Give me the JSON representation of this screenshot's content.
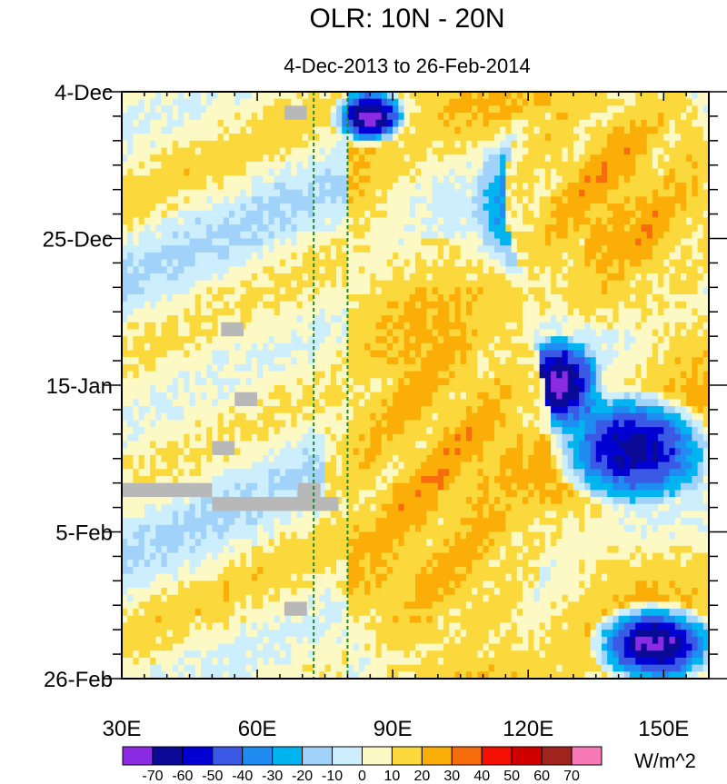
{
  "chart_data": {
    "type": "heatmap",
    "title": "OLR: 10N - 20N",
    "subtitle": "4-Dec-2013 to 26-Feb-2014",
    "x_axis": {
      "label": "",
      "range_deg": [
        30,
        160
      ],
      "ticks": [
        30,
        60,
        90,
        120,
        150
      ],
      "tick_labels": [
        "30E",
        "60E",
        "90E",
        "120E",
        "150E"
      ]
    },
    "y_axis": {
      "label": "",
      "range_days": [
        0,
        84
      ],
      "direction": "top-to-bottom",
      "ticks": [
        0,
        21,
        42,
        63,
        84
      ],
      "tick_labels": [
        "4-Dec",
        "25-Dec",
        "15-Jan",
        "5-Feb",
        "26-Feb"
      ]
    },
    "reference_lines": [
      {
        "longitude": 72.5,
        "style": "dashed",
        "color": "#1c8a2c"
      },
      {
        "longitude": 80,
        "style": "dashed",
        "color": "#1c8a2c"
      }
    ],
    "colorbar": {
      "units": "W/m^2",
      "boundaries": [
        -70,
        -60,
        -50,
        -40,
        -30,
        -20,
        -10,
        0,
        10,
        20,
        30,
        40,
        50,
        60,
        70
      ],
      "labels": [
        "-70",
        "-60",
        "-50",
        "-40",
        "-30",
        "-20",
        "-10",
        "0",
        "10",
        "20",
        "30",
        "40",
        "50",
        "60",
        "70"
      ],
      "colors": [
        "#8b2be3",
        "#0a0a96",
        "#0000d2",
        "#3a5ae6",
        "#1e8cf0",
        "#00b4f0",
        "#a0d2fa",
        "#cdeefc",
        "#fdf9c4",
        "#fbd93c",
        "#fcae08",
        "#f76c0c",
        "#f41000",
        "#d10000",
        "#a1231e",
        "#f77ab7"
      ]
    },
    "missing_color": "#b8b8b8",
    "anomaly_features": [
      {
        "lon_range": [
          78,
          92
        ],
        "day_range": [
          0,
          7
        ],
        "min_value": -70,
        "desc": "strong negative near 85E early Dec"
      },
      {
        "lon_range": [
          110,
          132
        ],
        "day_range": [
          6,
          26
        ],
        "min_value": -40
      },
      {
        "lon_range": [
          118,
          135
        ],
        "day_range": [
          36,
          48
        ],
        "min_value": -70
      },
      {
        "lon_range": [
          128,
          158
        ],
        "day_range": [
          44,
          58
        ],
        "min_value": -60
      },
      {
        "lon_range": [
          136,
          160
        ],
        "day_range": [
          74,
          84
        ],
        "min_value": -70
      },
      {
        "lon_range": [
          80,
          120
        ],
        "day_range": [
          28,
          80
        ],
        "max_value": 30,
        "desc": "positive anomalies"
      },
      {
        "lon_range": [
          120,
          160
        ],
        "day_range": [
          0,
          30
        ],
        "max_value": 30
      }
    ],
    "missing_regions": [
      {
        "lon_range": [
          66,
          71
        ],
        "day_range": [
          2,
          4
        ]
      },
      {
        "lon_range": [
          52,
          57
        ],
        "day_range": [
          33,
          35
        ]
      },
      {
        "lon_range": [
          55,
          60
        ],
        "day_range": [
          43,
          45
        ]
      },
      {
        "lon_range": [
          50,
          55
        ],
        "day_range": [
          50,
          52
        ]
      },
      {
        "lon_range": [
          30,
          50
        ],
        "day_range": [
          56,
          58
        ]
      },
      {
        "lon_range": [
          50,
          78
        ],
        "day_range": [
          58,
          60
        ]
      },
      {
        "lon_range": [
          69,
          74
        ],
        "day_range": [
          56,
          58
        ]
      },
      {
        "lon_range": [
          66,
          71
        ],
        "day_range": [
          73,
          75
        ]
      }
    ]
  }
}
